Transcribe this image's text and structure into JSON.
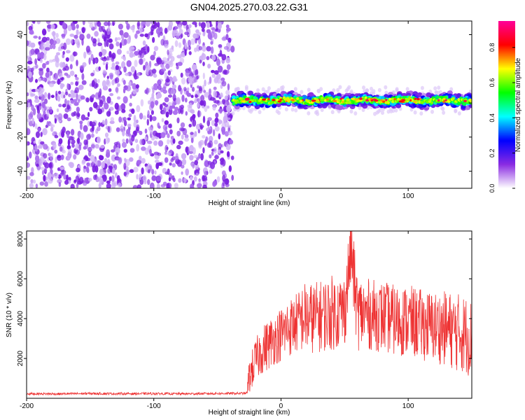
{
  "chart_data": [
    {
      "type": "heatmap",
      "title": "GN04.2025.270.03.22.G31",
      "xlabel": "Height of straight line (km)",
      "ylabel": "Frequency (Hz)",
      "xlim": [
        -200,
        150
      ],
      "ylim": [
        -50,
        48
      ],
      "xticks": [
        -200,
        -100,
        0,
        100
      ],
      "xtick_labels": [
        "-200",
        "-100",
        "0",
        "100"
      ],
      "yticks": [
        -40,
        -20,
        0,
        20,
        40
      ],
      "ytick_labels": [
        "-40",
        "-20",
        "0",
        "20",
        "40"
      ],
      "regions": [
        {
          "name": "noise",
          "x_range": [
            -200,
            -38
          ],
          "freq_range": [
            -50,
            48
          ],
          "amplitude_range": [
            0.0,
            0.15
          ]
        },
        {
          "name": "signal",
          "x_range": [
            -38,
            150
          ],
          "center_freq": 1.5,
          "half_width_hz": 4,
          "peak_amplitude": 0.9
        }
      ],
      "colorbar": {
        "label": "Normalized spectral amplitude",
        "range": [
          0.0,
          0.95
        ],
        "ticks": [
          0.0,
          0.2,
          0.4,
          0.6,
          0.8
        ],
        "tick_labels": [
          "0.0",
          "0.2",
          "0.4",
          "0.6",
          "0.8"
        ],
        "colors": [
          "#ffffff",
          "#8a2be2",
          "#0000ff",
          "#00ffff",
          "#00ff00",
          "#ffff00",
          "#ff0000",
          "#ff0099"
        ]
      }
    },
    {
      "type": "line",
      "xlabel": "Height of straight line (km)",
      "ylabel": "SNR (10 * v/v)",
      "xlim": [
        -200,
        150
      ],
      "ylim": [
        0,
        8400
      ],
      "xticks": [
        -200,
        -100,
        0,
        100
      ],
      "xtick_labels": [
        "-200",
        "-100",
        "0",
        "100"
      ],
      "yticks": [
        2000,
        4000,
        6000,
        8000
      ],
      "ytick_labels": [
        "2000",
        "4000",
        "6000",
        "8000"
      ],
      "color": "#ee3333",
      "series": [
        {
          "name": "SNR",
          "x": [
            -200,
            -175,
            -150,
            -125,
            -100,
            -75,
            -50,
            -27,
            -25,
            -20,
            -15,
            -10,
            -5,
            0,
            5,
            10,
            15,
            18,
            20,
            30,
            40,
            50,
            55,
            60,
            70,
            80,
            90,
            100,
            110,
            120,
            130,
            140,
            145,
            150
          ],
          "y": [
            230,
            220,
            240,
            230,
            235,
            225,
            240,
            250,
            1100,
            1900,
            2400,
            2700,
            3000,
            3200,
            3500,
            3700,
            3900,
            4100,
            4000,
            4100,
            4300,
            4400,
            7500,
            4300,
            4200,
            4100,
            3900,
            3900,
            3700,
            3600,
            3500,
            3300,
            3200,
            3000
          ],
          "noise_amplitude": [
            60,
            60,
            60,
            60,
            60,
            60,
            60,
            60,
            900,
            1100,
            1200,
            1300,
            1300,
            1400,
            1500,
            1500,
            1600,
            1800,
            1800,
            1800,
            1900,
            1900,
            1900,
            1900,
            1800,
            1800,
            1800,
            1800,
            1800,
            1800,
            1900,
            2000,
            2000,
            2000
          ]
        }
      ]
    }
  ]
}
